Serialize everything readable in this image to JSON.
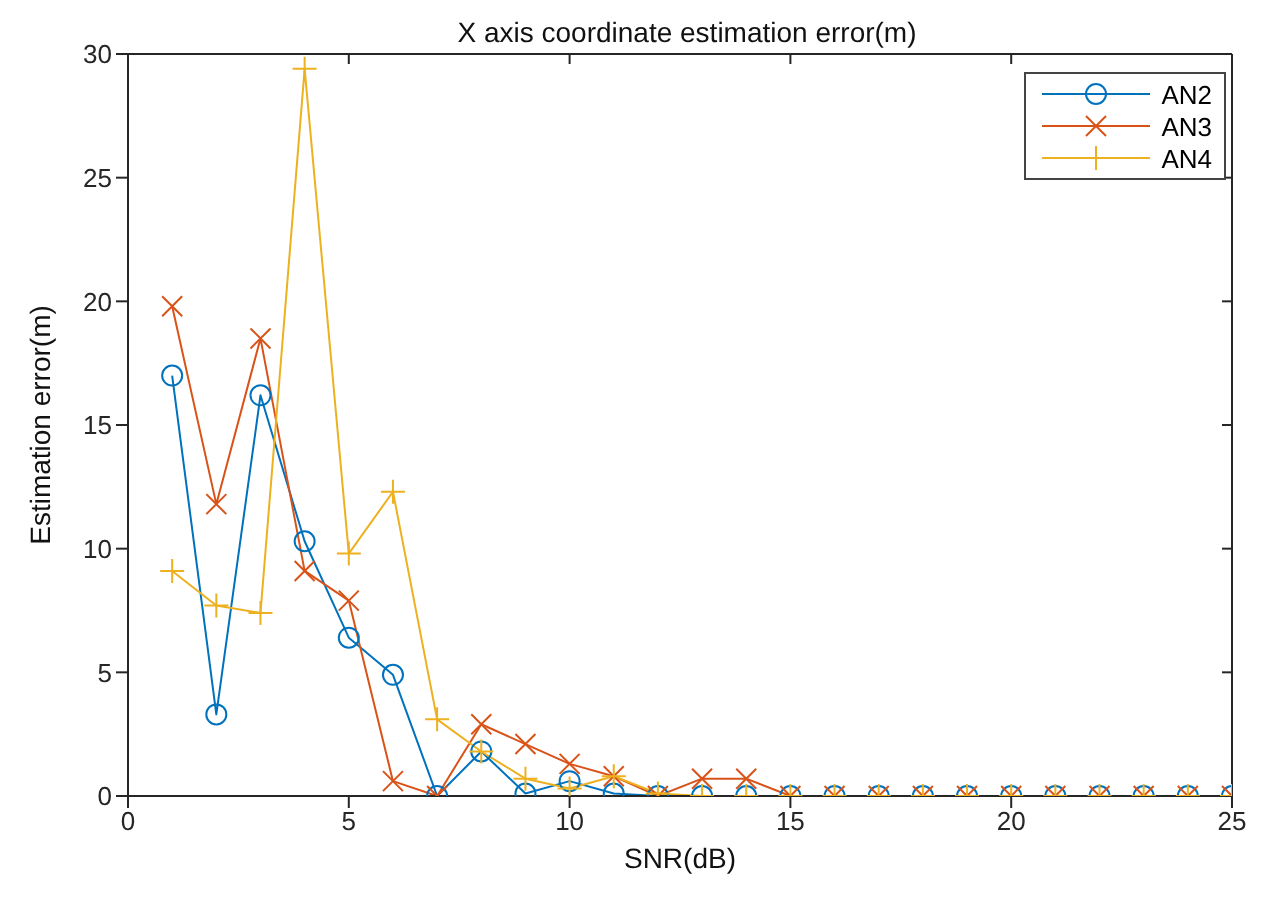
{
  "chart_data": {
    "type": "line",
    "title": "X axis coordinate estimation error(m)",
    "xlabel": "SNR(dB)",
    "ylabel": "Estimation error(m)",
    "x": [
      1,
      2,
      3,
      4,
      5,
      6,
      7,
      8,
      9,
      10,
      11,
      12,
      13,
      14,
      15,
      16,
      17,
      18,
      19,
      20,
      21,
      22,
      23,
      24,
      25
    ],
    "series": [
      {
        "name": "AN2",
        "color": "#0072bd",
        "marker": "circle",
        "values": [
          17,
          3.3,
          16.2,
          10.3,
          6.4,
          4.9,
          0,
          1.8,
          0.1,
          0.6,
          0.1,
          0,
          0,
          0,
          0,
          0,
          0,
          0,
          0,
          0,
          0,
          0,
          0,
          0,
          0
        ]
      },
      {
        "name": "AN3",
        "color": "#d95319",
        "marker": "cross",
        "values": [
          19.8,
          11.8,
          18.5,
          9.1,
          7.9,
          0.6,
          0,
          2.9,
          2.1,
          1.3,
          0.8,
          0,
          0.7,
          0.7,
          0,
          0,
          0,
          0,
          0,
          0,
          0,
          0,
          0,
          0,
          0
        ]
      },
      {
        "name": "AN4",
        "color": "#edb120",
        "marker": "plus",
        "values": [
          9.1,
          7.7,
          7.4,
          29.4,
          9.8,
          12.3,
          3.1,
          1.8,
          0.7,
          0.3,
          0.8,
          0.1,
          0,
          0,
          0,
          0,
          0,
          0,
          0,
          0,
          0,
          0,
          0,
          0,
          0
        ]
      }
    ],
    "xlim": [
      0,
      25
    ],
    "xticks": [
      0,
      5,
      10,
      15,
      20,
      25
    ],
    "ylim": [
      0,
      30
    ],
    "yticks": [
      0,
      5,
      10,
      15,
      20,
      25,
      30
    ],
    "grid": false,
    "legend": "top right",
    "line_style": "solid"
  }
}
